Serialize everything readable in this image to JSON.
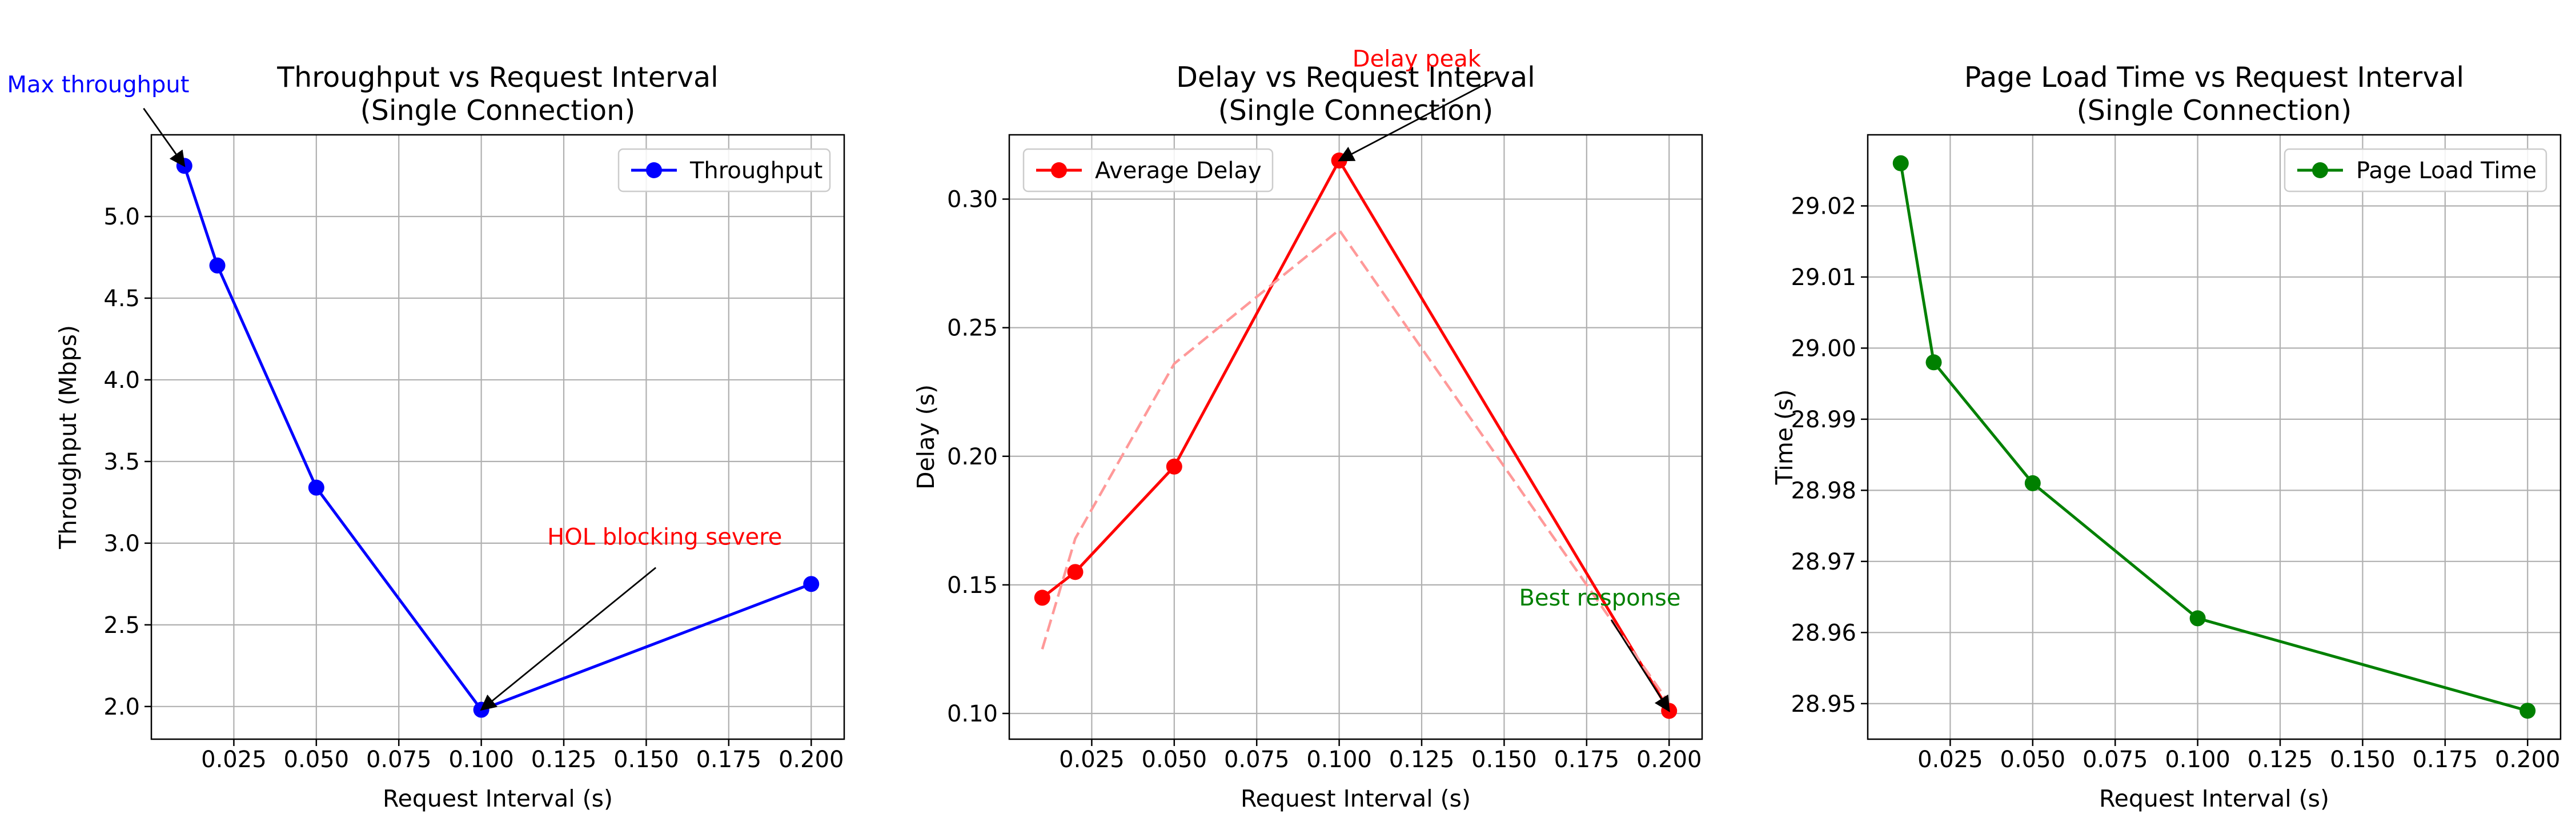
{
  "chart_data": [
    {
      "type": "line",
      "title": "Throughput vs Request Interval\n(Single Connection)",
      "xlabel": "Request Interval (s)",
      "ylabel": "Throughput (Mbps)",
      "xlim": [
        0.0,
        0.21
      ],
      "ylim": [
        1.8,
        5.5
      ],
      "xticks": [
        0.025,
        0.05,
        0.075,
        0.1,
        0.125,
        0.15,
        0.175,
        0.2
      ],
      "xtick_labels": [
        "0.025",
        "0.050",
        "0.075",
        "0.100",
        "0.125",
        "0.150",
        "0.175",
        "0.200"
      ],
      "yticks": [
        2.0,
        2.5,
        3.0,
        3.5,
        4.0,
        4.5,
        5.0
      ],
      "ytick_labels": [
        "2.0",
        "2.5",
        "3.0",
        "3.5",
        "4.0",
        "4.5",
        "5.0"
      ],
      "grid": true,
      "legend_position": "top-right",
      "series": [
        {
          "name": "Throughput",
          "color": "#0000ff",
          "style": "solid-marker",
          "x": [
            0.01,
            0.02,
            0.05,
            0.1,
            0.2
          ],
          "y": [
            5.31,
            4.7,
            3.34,
            1.98,
            2.75
          ]
        }
      ],
      "annotations": [
        {
          "text": "⬆ Max throughput",
          "color": "#0000ff",
          "anchor": "end",
          "text_xy": [
            0.0115,
            5.76
          ],
          "arrow_to": [
            0.01,
            5.31
          ]
        },
        {
          "text": "HOL blocking severe",
          "color": "#ff0000",
          "anchor": "start",
          "text_xy": [
            0.12,
            2.99
          ],
          "arrow_to": [
            0.1,
            1.98
          ]
        }
      ]
    },
    {
      "type": "line",
      "title": "Delay vs Request Interval\n(Single Connection)",
      "xlabel": "Request Interval (s)",
      "ylabel": "Delay (s)",
      "xlim": [
        0.0,
        0.21
      ],
      "ylim": [
        0.09,
        0.325
      ],
      "xticks": [
        0.025,
        0.05,
        0.075,
        0.1,
        0.125,
        0.15,
        0.175,
        0.2
      ],
      "xtick_labels": [
        "0.025",
        "0.050",
        "0.075",
        "0.100",
        "0.125",
        "0.150",
        "0.175",
        "0.200"
      ],
      "yticks": [
        0.1,
        0.15,
        0.2,
        0.25,
        0.3
      ],
      "ytick_labels": [
        "0.10",
        "0.15",
        "0.20",
        "0.25",
        "0.30"
      ],
      "grid": true,
      "legend_position": "top-left",
      "series": [
        {
          "name": "Average Delay",
          "color": "#ff0000",
          "style": "solid-marker",
          "x": [
            0.01,
            0.02,
            0.05,
            0.1,
            0.2
          ],
          "y": [
            0.145,
            0.155,
            0.196,
            0.315,
            0.101
          ]
        },
        {
          "color": "#ff9999",
          "style": "dashed",
          "x": [
            0.01,
            0.02,
            0.05,
            0.1,
            0.2
          ],
          "y": [
            0.125,
            0.168,
            0.236,
            0.288,
            0.104
          ]
        }
      ],
      "annotations": [
        {
          "text": "Delay peak",
          "color": "#ff0000",
          "anchor": "middle",
          "text_xy": [
            0.1235,
            0.3515
          ],
          "arrow_to": [
            0.1,
            0.315
          ]
        },
        {
          "text": "Best response",
          "color": "#008000",
          "anchor": "middle",
          "text_xy": [
            0.179,
            0.142
          ],
          "arrow_to": [
            0.2,
            0.101
          ]
        }
      ]
    },
    {
      "type": "line",
      "title": "Page Load Time vs Request Interval\n(Single Connection)",
      "xlabel": "Request Interval (s)",
      "ylabel": "Time (s)",
      "xlim": [
        0.0,
        0.21
      ],
      "ylim": [
        28.945,
        29.03
      ],
      "xticks": [
        0.025,
        0.05,
        0.075,
        0.1,
        0.125,
        0.15,
        0.175,
        0.2
      ],
      "xtick_labels": [
        "0.025",
        "0.050",
        "0.075",
        "0.100",
        "0.125",
        "0.150",
        "0.175",
        "0.200"
      ],
      "yticks": [
        28.95,
        28.96,
        28.97,
        28.98,
        28.99,
        29.0,
        29.01,
        29.02
      ],
      "ytick_labels": [
        "28.95",
        "28.96",
        "28.97",
        "28.98",
        "28.99",
        "29.00",
        "29.01",
        "29.02"
      ],
      "grid": true,
      "legend_position": "top-right",
      "series": [
        {
          "name": "Page Load Time",
          "color": "#008000",
          "style": "solid-marker",
          "x": [
            0.01,
            0.02,
            0.05,
            0.1,
            0.2
          ],
          "y": [
            29.026,
            28.998,
            28.981,
            28.962,
            28.949
          ]
        }
      ],
      "annotations": []
    }
  ]
}
